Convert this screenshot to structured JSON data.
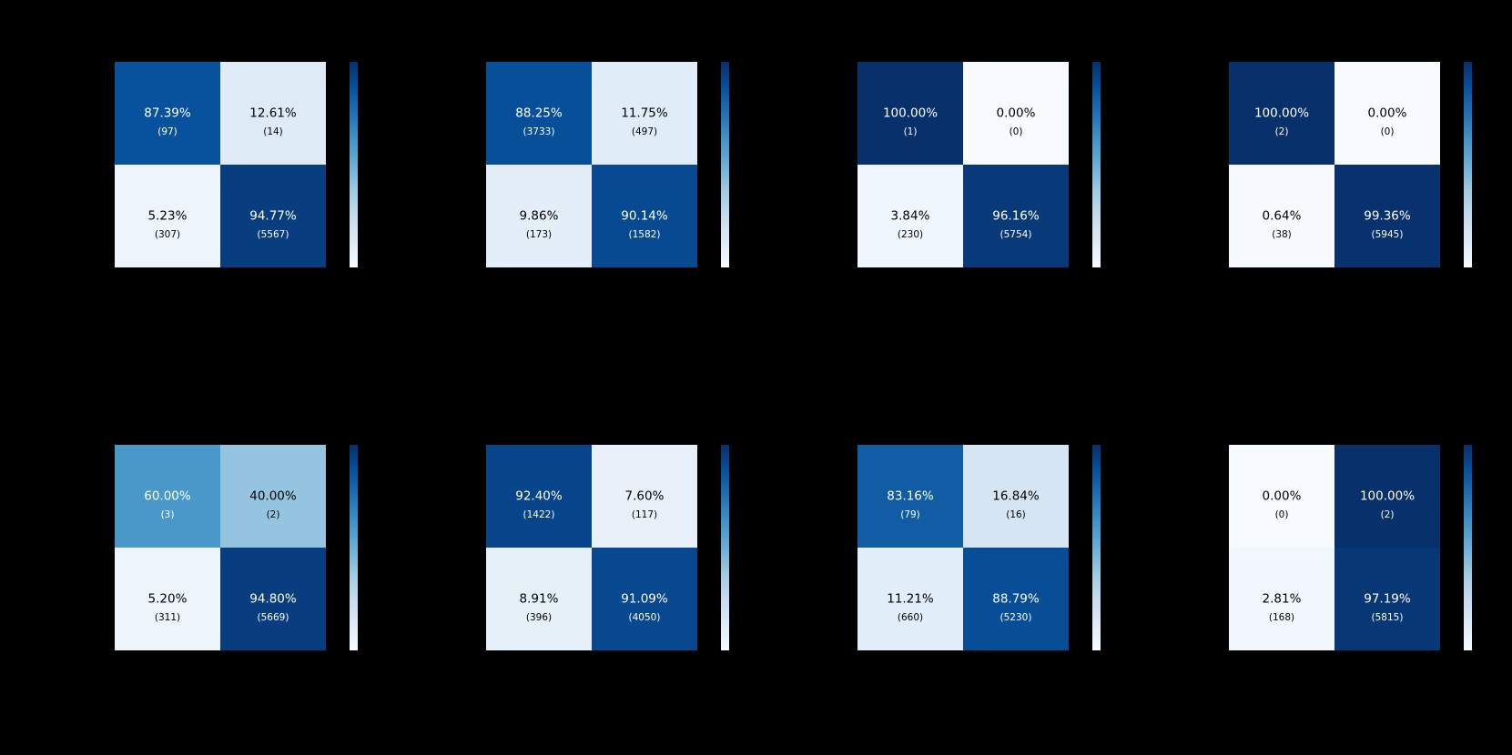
{
  "figure": {
    "background_color": "#000000",
    "grid_rows": 2,
    "grid_cols": 4,
    "colormap_name": "Blues",
    "colormap_anchors": [
      "#f7fbff",
      "#deebf7",
      "#c6dbef",
      "#9ecae1",
      "#6baed6",
      "#4292c6",
      "#2171b5",
      "#08519c",
      "#08306b"
    ],
    "cell_text_color_dark": "#000000",
    "cell_text_color_light": "#ffffff"
  },
  "chart_data": [
    {
      "type": "heatmap",
      "subtype": "confusion-matrix",
      "position": {
        "row": 0,
        "col": 0
      },
      "colorbar": true,
      "cells": [
        {
          "row": 0,
          "col": 0,
          "pct": 87.39,
          "count": 97,
          "pct_label": "87.39%",
          "count_label": "(97)"
        },
        {
          "row": 0,
          "col": 1,
          "pct": 12.61,
          "count": 14,
          "pct_label": "12.61%",
          "count_label": "(14)"
        },
        {
          "row": 1,
          "col": 0,
          "pct": 5.23,
          "count": 307,
          "pct_label": "5.23%",
          "count_label": "(307)"
        },
        {
          "row": 1,
          "col": 1,
          "pct": 94.77,
          "count": 5567,
          "pct_label": "94.77%",
          "count_label": "(5567)"
        }
      ]
    },
    {
      "type": "heatmap",
      "subtype": "confusion-matrix",
      "position": {
        "row": 0,
        "col": 1
      },
      "colorbar": true,
      "cells": [
        {
          "row": 0,
          "col": 0,
          "pct": 88.25,
          "count": 3733,
          "pct_label": "88.25%",
          "count_label": "(3733)"
        },
        {
          "row": 0,
          "col": 1,
          "pct": 11.75,
          "count": 497,
          "pct_label": "11.75%",
          "count_label": "(497)"
        },
        {
          "row": 1,
          "col": 0,
          "pct": 9.86,
          "count": 173,
          "pct_label": "9.86%",
          "count_label": "(173)"
        },
        {
          "row": 1,
          "col": 1,
          "pct": 90.14,
          "count": 1582,
          "pct_label": "90.14%",
          "count_label": "(1582)"
        }
      ]
    },
    {
      "type": "heatmap",
      "subtype": "confusion-matrix",
      "position": {
        "row": 0,
        "col": 2
      },
      "colorbar": true,
      "cells": [
        {
          "row": 0,
          "col": 0,
          "pct": 100.0,
          "count": 1,
          "pct_label": "100.00%",
          "count_label": "(1)"
        },
        {
          "row": 0,
          "col": 1,
          "pct": 0.0,
          "count": 0,
          "pct_label": "0.00%",
          "count_label": "(0)"
        },
        {
          "row": 1,
          "col": 0,
          "pct": 3.84,
          "count": 230,
          "pct_label": "3.84%",
          "count_label": "(230)"
        },
        {
          "row": 1,
          "col": 1,
          "pct": 96.16,
          "count": 5754,
          "pct_label": "96.16%",
          "count_label": "(5754)"
        }
      ]
    },
    {
      "type": "heatmap",
      "subtype": "confusion-matrix",
      "position": {
        "row": 0,
        "col": 3
      },
      "colorbar": true,
      "cells": [
        {
          "row": 0,
          "col": 0,
          "pct": 100.0,
          "count": 2,
          "pct_label": "100.00%",
          "count_label": "(2)"
        },
        {
          "row": 0,
          "col": 1,
          "pct": 0.0,
          "count": 0,
          "pct_label": "0.00%",
          "count_label": "(0)"
        },
        {
          "row": 1,
          "col": 0,
          "pct": 0.64,
          "count": 38,
          "pct_label": "0.64%",
          "count_label": "(38)"
        },
        {
          "row": 1,
          "col": 1,
          "pct": 99.36,
          "count": 5945,
          "pct_label": "99.36%",
          "count_label": "(5945)"
        }
      ]
    },
    {
      "type": "heatmap",
      "subtype": "confusion-matrix",
      "position": {
        "row": 1,
        "col": 0
      },
      "colorbar": true,
      "cells": [
        {
          "row": 0,
          "col": 0,
          "pct": 60.0,
          "count": 3,
          "pct_label": "60.00%",
          "count_label": "(3)"
        },
        {
          "row": 0,
          "col": 1,
          "pct": 40.0,
          "count": 2,
          "pct_label": "40.00%",
          "count_label": "(2)"
        },
        {
          "row": 1,
          "col": 0,
          "pct": 5.2,
          "count": 311,
          "pct_label": "5.20%",
          "count_label": "(311)"
        },
        {
          "row": 1,
          "col": 1,
          "pct": 94.8,
          "count": 5669,
          "pct_label": "94.80%",
          "count_label": "(5669)"
        }
      ]
    },
    {
      "type": "heatmap",
      "subtype": "confusion-matrix",
      "position": {
        "row": 1,
        "col": 1
      },
      "colorbar": true,
      "cells": [
        {
          "row": 0,
          "col": 0,
          "pct": 92.4,
          "count": 1422,
          "pct_label": "92.40%",
          "count_label": "(1422)"
        },
        {
          "row": 0,
          "col": 1,
          "pct": 7.6,
          "count": 117,
          "pct_label": "7.60%",
          "count_label": "(117)"
        },
        {
          "row": 1,
          "col": 0,
          "pct": 8.91,
          "count": 396,
          "pct_label": "8.91%",
          "count_label": "(396)"
        },
        {
          "row": 1,
          "col": 1,
          "pct": 91.09,
          "count": 4050,
          "pct_label": "91.09%",
          "count_label": "(4050)"
        }
      ]
    },
    {
      "type": "heatmap",
      "subtype": "confusion-matrix",
      "position": {
        "row": 1,
        "col": 2
      },
      "colorbar": true,
      "cells": [
        {
          "row": 0,
          "col": 0,
          "pct": 83.16,
          "count": 79,
          "pct_label": "83.16%",
          "count_label": "(79)"
        },
        {
          "row": 0,
          "col": 1,
          "pct": 16.84,
          "count": 16,
          "pct_label": "16.84%",
          "count_label": "(16)"
        },
        {
          "row": 1,
          "col": 0,
          "pct": 11.21,
          "count": 660,
          "pct_label": "11.21%",
          "count_label": "(660)"
        },
        {
          "row": 1,
          "col": 1,
          "pct": 88.79,
          "count": 5230,
          "pct_label": "88.79%",
          "count_label": "(5230)"
        }
      ]
    },
    {
      "type": "heatmap",
      "subtype": "confusion-matrix",
      "position": {
        "row": 1,
        "col": 3
      },
      "colorbar": true,
      "cells": [
        {
          "row": 0,
          "col": 0,
          "pct": 0.0,
          "count": 0,
          "pct_label": "0.00%",
          "count_label": "(0)"
        },
        {
          "row": 0,
          "col": 1,
          "pct": 100.0,
          "count": 2,
          "pct_label": "100.00%",
          "count_label": "(2)"
        },
        {
          "row": 1,
          "col": 0,
          "pct": 2.81,
          "count": 168,
          "pct_label": "2.81%",
          "count_label": "(168)"
        },
        {
          "row": 1,
          "col": 1,
          "pct": 97.19,
          "count": 5815,
          "pct_label": "97.19%",
          "count_label": "(5815)"
        }
      ]
    }
  ]
}
